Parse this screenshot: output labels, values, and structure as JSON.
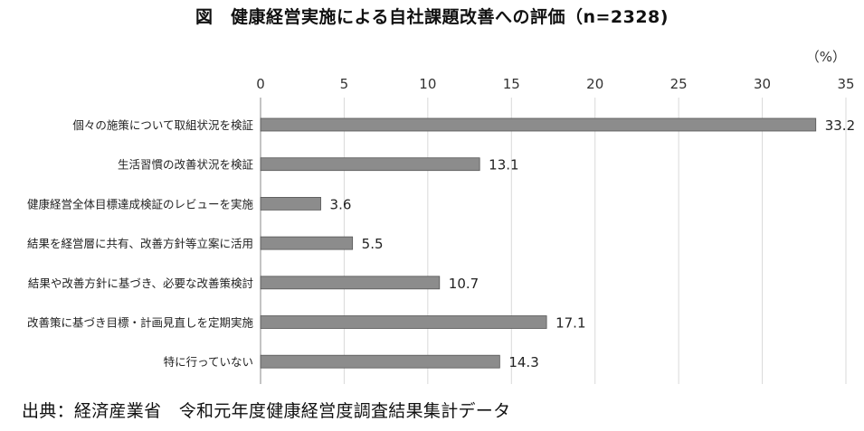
{
  "chart_data": {
    "type": "bar",
    "orientation": "horizontal",
    "title": "図　健康経営実施による自社課題改善への評価（n=2328)",
    "unit_label": "（%）",
    "xlim": [
      0,
      35
    ],
    "x_ticks": [
      0,
      5,
      10,
      15,
      20,
      25,
      30,
      35
    ],
    "grid": true,
    "categories": [
      "個々の施策について取組状況を検証",
      "生活習慣の改善状況を検証",
      "健康経営全体目標達成検証のレビューを実施",
      "結果を経営層に共有、改善方針等立案に活用",
      "結果や改善方針に基づき、必要な改善策検討",
      "改善策に基づき目標・計画見直しを定期実施",
      "特に行っていない"
    ],
    "values": [
      33.2,
      13.1,
      3.6,
      5.5,
      10.7,
      17.1,
      14.3
    ],
    "bar_color": "#8c8c8c"
  },
  "footer": {
    "source": "出典：経済産業省　令和元年度健康経営度調査結果集計データ"
  }
}
